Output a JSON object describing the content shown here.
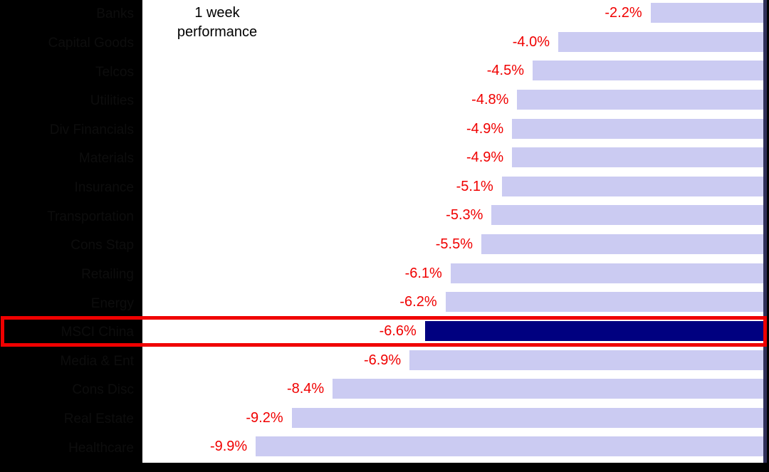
{
  "title": {
    "lines": [
      "1 week",
      "performance"
    ]
  },
  "chart_data": {
    "type": "bar",
    "orientation": "horizontal",
    "anchor": "right",
    "title": "1 week performance",
    "categories": [
      "Banks",
      "Capital Goods",
      "Telcos",
      "Utilities",
      "Div Financials",
      "Materials",
      "Insurance",
      "Transportation",
      "Cons Stap",
      "Retailing",
      "Energy",
      "MSCI China",
      "Media & Ent",
      "Cons Disc",
      "Real Estate",
      "Healthcare"
    ],
    "values": [
      -2.2,
      -4.0,
      -4.5,
      -4.8,
      -4.9,
      -4.9,
      -5.1,
      -5.3,
      -5.5,
      -6.1,
      -6.2,
      -6.6,
      -6.9,
      -8.4,
      -9.2,
      -9.9
    ],
    "value_labels": [
      "-2.2%",
      "-4.0%",
      "-4.5%",
      "-4.8%",
      "-4.9%",
      "-4.9%",
      "-5.1%",
      "-5.3%",
      "-5.5%",
      "-6.1%",
      "-6.2%",
      "-6.6%",
      "-6.9%",
      "-8.4%",
      "-9.2%",
      "-9.9%"
    ],
    "highlighted_index": 11,
    "highlighted_category": "MSCI China",
    "xlim": [
      -10.5,
      0
    ],
    "grid": false,
    "legend": "none",
    "colors": {
      "bar": "#cbcbf2",
      "highlight_bar": "#000080",
      "value_text": "#f00000",
      "highlight_box": "#f00000",
      "background": "#000000",
      "plot_background": "#ffffff",
      "category_text": "#0d0d0d",
      "title_text": "#000000"
    }
  }
}
